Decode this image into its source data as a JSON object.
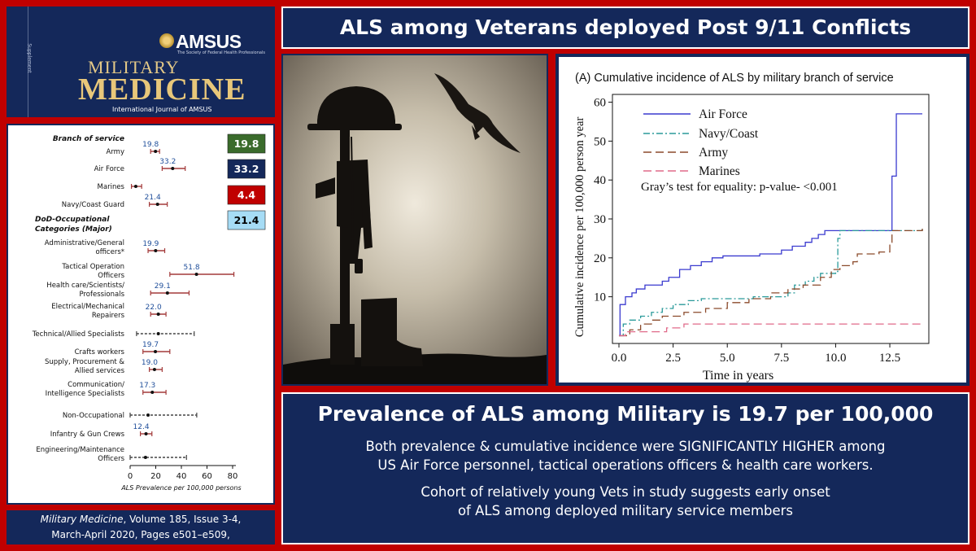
{
  "journal": {
    "org": "AMSUS",
    "org_sub": "The Society of Federal Health Professionals",
    "word1": "MILITARY",
    "word2": "MEDICINE",
    "subtitle": "International Journal of AMSUS",
    "spine": "Supplement"
  },
  "page_title": "ALS among Veterans deployed Post 9/11 Conflicts",
  "citation": {
    "journal": "Military Medicine",
    "rest_line1": ", Volume 185, Issue 3-4,",
    "line2": "March-April 2020, Pages e501–e509,"
  },
  "prevalence": {
    "headline": "Prevalence of ALS among Military is 19.7 per 100,000",
    "p1_line1": "Both prevalence & cumulative incidence were SIGNIFICANTLY HIGHER among",
    "p1_line2": "US Air Force personnel, tactical operations officers & health care workers.",
    "p2_line1": "Cohort of relatively young Vets in study suggests early onset",
    "p2_line2": "of ALS among deployed military service members"
  },
  "chart_data": [
    {
      "type": "forest",
      "xlabel": "ALS Prevalence per 100,000 persons",
      "xlim": [
        0,
        80
      ],
      "xticks": [
        0,
        20,
        40,
        60,
        80
      ],
      "sections": [
        "Branch of service",
        "DoD-Occupational Categories (Major)"
      ],
      "rows": [
        {
          "label": [
            "Army"
          ],
          "value": 19.8,
          "label_value": "19.8",
          "lo": 16,
          "hi": 23,
          "style": "solid"
        },
        {
          "label": [
            "Air Force"
          ],
          "value": 33.2,
          "label_value": "33.2",
          "lo": 25,
          "hi": 43,
          "style": "solid"
        },
        {
          "label": [
            "Marines"
          ],
          "value": 4.4,
          "label_value": "",
          "lo": 1,
          "hi": 9,
          "style": "solid"
        },
        {
          "label": [
            "Navy/Coast Guard"
          ],
          "value": 21.4,
          "label_value": "21.4",
          "lo": 15,
          "hi": 29,
          "style": "solid"
        },
        {
          "label": [
            "Administrative/General",
            "officers*"
          ],
          "value": 19.9,
          "label_value": "19.9",
          "lo": 14,
          "hi": 27,
          "style": "solid"
        },
        {
          "label": [
            "Tactical Operation",
            "Officers"
          ],
          "value": 51.8,
          "label_value": "51.8",
          "lo": 31,
          "hi": 81,
          "style": "solid"
        },
        {
          "label": [
            "Health care/Scientists/",
            "Professionals"
          ],
          "value": 29.1,
          "label_value": "29.1",
          "lo": 16,
          "hi": 46,
          "style": "solid"
        },
        {
          "label": [
            "Electrical/Mechanical",
            "Repairers"
          ],
          "value": 22.0,
          "label_value": "22.0",
          "lo": 16,
          "hi": 28,
          "style": "solid"
        },
        {
          "label": [
            "Technical/Allied Specialists"
          ],
          "value": 22.0,
          "label_value": "",
          "lo": 5,
          "hi": 50,
          "style": "dashed"
        },
        {
          "label": [
            "Crafts workers"
          ],
          "value": 19.7,
          "label_value": "19.7",
          "lo": 10,
          "hi": 31,
          "style": "solid"
        },
        {
          "label": [
            "Supply, Procurement &",
            "Allied services"
          ],
          "value": 19.0,
          "label_value": "19.0",
          "lo": 15,
          "hi": 25,
          "style": "solid"
        },
        {
          "label": [
            "Communication/",
            "Intelligence Specialists"
          ],
          "value": 17.3,
          "label_value": "17.3",
          "lo": 10,
          "hi": 28,
          "style": "solid"
        },
        {
          "label": [
            "Non-Occupational"
          ],
          "value": 14.0,
          "label_value": "",
          "lo": 0,
          "hi": 52,
          "style": "dashed"
        },
        {
          "label": [
            "Infantry & Gun Crews"
          ],
          "value": 12.4,
          "label_value": "12.4",
          "lo": 8,
          "hi": 17,
          "style": "solid"
        },
        {
          "label": [
            "Engineering/Maintenance",
            "Officers"
          ],
          "value": 12.0,
          "label_value": "",
          "lo": 0,
          "hi": 44,
          "style": "dashed"
        }
      ],
      "callouts": [
        {
          "value": "19.8",
          "color": "#3a6b2b",
          "text_color": "#ffffff"
        },
        {
          "value": "33.2",
          "color": "#14285a",
          "text_color": "#ffffff"
        },
        {
          "value": "4.4",
          "color": "#c00000",
          "text_color": "#ffffff"
        },
        {
          "value": "21.4",
          "color": "#a6dcf5",
          "text_color": "#000000"
        }
      ]
    },
    {
      "type": "line",
      "step": true,
      "title": "(A) Cumulative incidence of ALS by military branch of service",
      "xlabel": "Time in years",
      "ylabel": "Cumulative incidence per 100,000 person year",
      "xlim": [
        -0.3,
        14.3
      ],
      "ylim": [
        -2,
        62
      ],
      "xticks": [
        "0.0",
        "2.5",
        "5.0",
        "7.5",
        "10.0",
        "12.5"
      ],
      "yticks": [
        "10",
        "20",
        "30",
        "40",
        "50",
        "60"
      ],
      "annotation": "Gray’s test for equality:  p-value- <0.001",
      "legend_position": "top-left",
      "series": [
        {
          "name": "Air Force",
          "color": "#3a3acf",
          "dash": "solid",
          "points": [
            [
              0,
              0
            ],
            [
              0.05,
              8
            ],
            [
              0.3,
              10
            ],
            [
              0.6,
              11
            ],
            [
              0.8,
              12
            ],
            [
              1.2,
              13
            ],
            [
              2.0,
              14
            ],
            [
              2.3,
              15
            ],
            [
              2.8,
              17
            ],
            [
              3.3,
              18
            ],
            [
              3.8,
              19
            ],
            [
              4.3,
              20
            ],
            [
              4.8,
              20.5
            ],
            [
              6.5,
              21
            ],
            [
              7.5,
              22
            ],
            [
              8.0,
              23
            ],
            [
              8.6,
              24
            ],
            [
              8.9,
              25
            ],
            [
              9.2,
              26
            ],
            [
              9.5,
              27
            ],
            [
              12.6,
              27.5
            ],
            [
              12.6,
              41
            ],
            [
              12.8,
              57
            ],
            [
              14.0,
              57
            ]
          ]
        },
        {
          "name": "Navy/Coast",
          "color": "#2a9a9a",
          "dash": "dashdot",
          "points": [
            [
              0,
              0
            ],
            [
              0.2,
              3
            ],
            [
              0.5,
              4
            ],
            [
              1.0,
              5
            ],
            [
              1.5,
              6
            ],
            [
              2.0,
              7
            ],
            [
              2.5,
              8
            ],
            [
              3.2,
              9
            ],
            [
              3.8,
              9.5
            ],
            [
              6.2,
              10
            ],
            [
              7.8,
              11
            ],
            [
              8.1,
              13
            ],
            [
              8.6,
              14
            ],
            [
              9.0,
              15
            ],
            [
              9.3,
              16
            ],
            [
              10.0,
              16.5
            ],
            [
              10.1,
              25
            ],
            [
              10.2,
              27
            ],
            [
              14.0,
              27.5
            ]
          ]
        },
        {
          "name": "Army",
          "color": "#8b4a2b",
          "dash": "dashed",
          "points": [
            [
              0,
              0
            ],
            [
              0.5,
              1.5
            ],
            [
              1.0,
              3
            ],
            [
              1.5,
              4
            ],
            [
              2.0,
              5
            ],
            [
              3.0,
              6
            ],
            [
              4.0,
              7
            ],
            [
              5.0,
              8.5
            ],
            [
              6.0,
              9.5
            ],
            [
              7.0,
              11
            ],
            [
              7.8,
              12
            ],
            [
              8.5,
              13
            ],
            [
              9.3,
              15
            ],
            [
              9.8,
              17
            ],
            [
              10.2,
              18
            ],
            [
              10.8,
              19
            ],
            [
              11.0,
              21
            ],
            [
              12.0,
              21.5
            ],
            [
              12.5,
              24
            ],
            [
              12.6,
              27
            ],
            [
              14.0,
              27.5
            ]
          ]
        },
        {
          "name": "Marines",
          "color": "#e06a8a",
          "dash": "dashed",
          "points": [
            [
              0,
              0
            ],
            [
              0.3,
              1
            ],
            [
              2.2,
              2
            ],
            [
              3.0,
              3
            ],
            [
              14.0,
              3
            ]
          ]
        }
      ]
    }
  ]
}
